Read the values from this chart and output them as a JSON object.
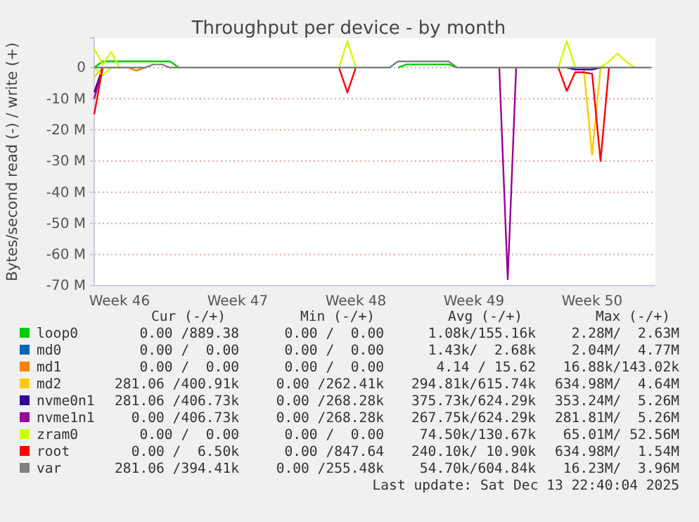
{
  "chart_data": {
    "type": "line",
    "title": "Throughput per device - by month",
    "ylabel": "Bytes/second read (-) / write (+)",
    "categories": [
      null,
      null,
      null,
      "Week 46",
      null,
      null,
      null,
      null,
      null,
      null,
      null,
      null,
      null,
      null,
      null,
      null,
      null,
      "Week 47",
      null,
      null,
      null,
      null,
      null,
      null,
      null,
      null,
      null,
      null,
      null,
      null,
      null,
      "Week 48",
      null,
      null,
      null,
      null,
      null,
      null,
      null,
      null,
      null,
      null,
      null,
      null,
      null,
      "Week 49",
      null,
      null,
      null,
      null,
      null,
      null,
      null,
      null,
      null,
      null,
      null,
      null,
      null,
      "Week 50",
      null,
      null,
      null,
      null,
      null,
      null,
      null
    ],
    "ylim": [
      -70,
      9.5
    ],
    "yticks": [
      {
        "value": -70,
        "label": "-70 M"
      },
      {
        "value": -60,
        "label": "-60 M"
      },
      {
        "value": -50,
        "label": "-50 M"
      },
      {
        "value": -40,
        "label": "-40 M"
      },
      {
        "value": -30,
        "label": "-30 M"
      },
      {
        "value": -20,
        "label": "-20 M"
      },
      {
        "value": -10,
        "label": "-10 M"
      },
      0
    ],
    "grid": "y",
    "legend": "bottom",
    "series": [
      {
        "name": "loop0",
        "color": "#00cc00",
        "values": [
          0,
          2,
          2,
          2,
          2,
          2,
          2,
          2,
          2,
          2,
          0,
          null,
          null,
          null,
          null,
          null,
          null,
          null,
          null,
          null,
          null,
          null,
          null,
          null,
          null,
          null,
          null,
          null,
          null,
          null,
          null,
          null,
          null,
          null,
          null,
          null,
          0,
          1,
          1,
          1,
          1,
          1,
          1,
          0,
          null,
          null,
          null,
          null,
          null,
          null,
          null,
          null,
          null,
          null,
          null,
          null,
          null,
          null,
          null,
          null,
          null,
          null,
          null,
          null,
          null,
          null,
          null
        ]
      },
      {
        "name": "md0",
        "color": "#0066b3",
        "values": [
          null,
          null,
          null,
          null,
          null,
          null,
          null,
          null,
          null,
          null,
          null,
          null,
          null,
          null,
          null,
          null,
          null,
          null,
          null,
          null,
          null,
          null,
          null,
          null,
          null,
          null,
          null,
          null,
          null,
          null,
          null,
          null,
          null,
          null,
          null,
          null,
          null,
          null,
          null,
          null,
          null,
          null,
          null,
          null,
          null,
          null,
          null,
          null,
          null,
          null,
          null,
          null,
          null,
          null,
          null,
          null,
          null,
          null,
          null,
          null,
          null,
          null,
          null,
          null,
          null,
          null,
          null
        ]
      },
      {
        "name": "md1",
        "color": "#ff8000",
        "values": [
          null,
          null,
          null,
          null,
          0,
          -1,
          0,
          null,
          null,
          null,
          null,
          null,
          null,
          null,
          null,
          null,
          null,
          null,
          null,
          null,
          null,
          null,
          null,
          null,
          null,
          null,
          null,
          null,
          null,
          null,
          null,
          null,
          null,
          null,
          null,
          null,
          null,
          null,
          null,
          null,
          null,
          null,
          null,
          null,
          null,
          null,
          null,
          null,
          null,
          null,
          null,
          null,
          null,
          null,
          null,
          null,
          null,
          null,
          null,
          null,
          null,
          null,
          null,
          null,
          null,
          null,
          null
        ]
      },
      {
        "name": "md2",
        "color": "#ffcc00",
        "values": [
          -3,
          0,
          null,
          null,
          null,
          null,
          null,
          null,
          null,
          null,
          null,
          null,
          null,
          null,
          null,
          null,
          null,
          null,
          null,
          null,
          null,
          null,
          null,
          null,
          null,
          null,
          null,
          null,
          null,
          null,
          null,
          null,
          null,
          null,
          null,
          null,
          null,
          null,
          null,
          null,
          null,
          null,
          null,
          null,
          null,
          null,
          null,
          null,
          null,
          null,
          null,
          null,
          null,
          null,
          null,
          null,
          null,
          null,
          0,
          -28,
          0,
          null,
          null,
          null,
          null,
          null,
          null
        ]
      },
      {
        "name": "nvme0n1",
        "color": "#330099",
        "values": [
          -8,
          0,
          null,
          null,
          null,
          null,
          null,
          null,
          null,
          null,
          null,
          null,
          null,
          null,
          null,
          null,
          null,
          null,
          null,
          null,
          null,
          null,
          null,
          null,
          null,
          null,
          null,
          null,
          null,
          null,
          null,
          null,
          null,
          null,
          null,
          null,
          null,
          null,
          null,
          null,
          null,
          null,
          null,
          null,
          null,
          null,
          null,
          null,
          null,
          null,
          null,
          null,
          null,
          null,
          null,
          null,
          0,
          -0.6,
          -0.6,
          -0.6,
          0,
          null,
          null,
          null,
          null,
          null,
          null
        ]
      },
      {
        "name": "nvme1n1",
        "color": "#990099",
        "values": [
          -10,
          0,
          null,
          null,
          null,
          null,
          null,
          null,
          null,
          null,
          null,
          null,
          null,
          null,
          null,
          null,
          null,
          null,
          null,
          null,
          null,
          null,
          null,
          null,
          null,
          null,
          null,
          null,
          null,
          null,
          null,
          null,
          null,
          null,
          null,
          null,
          null,
          null,
          null,
          null,
          null,
          null,
          null,
          null,
          null,
          null,
          null,
          null,
          0,
          -68,
          0,
          null,
          null,
          null,
          null,
          null,
          null,
          null,
          null,
          null,
          null,
          null,
          null,
          null,
          null,
          null,
          null
        ]
      },
      {
        "name": "zram0",
        "color": "#ccff00",
        "values": [
          6,
          1,
          5,
          0,
          null,
          null,
          null,
          null,
          null,
          null,
          null,
          null,
          null,
          null,
          null,
          null,
          null,
          null,
          null,
          null,
          null,
          null,
          null,
          null,
          null,
          null,
          null,
          null,
          null,
          0,
          8.5,
          0,
          null,
          null,
          null,
          null,
          null,
          null,
          null,
          null,
          null,
          null,
          null,
          null,
          null,
          null,
          null,
          null,
          null,
          null,
          null,
          null,
          null,
          null,
          null,
          0,
          8.5,
          0,
          null,
          null,
          0,
          2,
          4.5,
          2,
          0,
          null,
          null
        ]
      },
      {
        "color": "#ccff00",
        "values": [
          0,
          -2.5,
          0,
          null,
          null,
          null,
          null,
          null,
          null,
          null,
          null,
          null,
          null,
          null,
          null,
          null,
          null,
          null,
          null,
          null,
          null,
          null,
          null,
          null,
          null,
          null,
          null,
          null,
          null,
          null,
          null,
          null,
          null,
          null,
          null,
          null,
          null,
          null,
          null,
          null,
          null,
          null,
          null,
          null,
          null,
          null,
          null,
          null,
          null,
          null,
          null,
          null,
          null,
          null,
          null,
          null,
          null,
          null,
          null,
          null,
          null,
          null,
          null,
          null,
          null,
          null,
          null
        ]
      },
      {
        "name": "root",
        "color": "#ff0000",
        "values": [
          -15,
          0,
          null,
          null,
          null,
          null,
          null,
          null,
          null,
          null,
          null,
          null,
          null,
          null,
          null,
          null,
          null,
          null,
          null,
          null,
          null,
          null,
          null,
          null,
          null,
          null,
          null,
          null,
          null,
          0,
          -8,
          0,
          null,
          null,
          null,
          null,
          null,
          null,
          null,
          null,
          null,
          null,
          null,
          null,
          null,
          null,
          null,
          null,
          null,
          null,
          null,
          null,
          null,
          null,
          null,
          0,
          -7.5,
          -1.5,
          -1.5,
          -2,
          -30,
          0,
          null,
          null,
          null,
          null,
          null
        ]
      },
      {
        "name": "var",
        "color": "#808080",
        "values": [
          0,
          0,
          0,
          0,
          0,
          0,
          0,
          1,
          1,
          0,
          0,
          0,
          0,
          0,
          0,
          0,
          0,
          0,
          0,
          0,
          0,
          0,
          0,
          0,
          0,
          0,
          0,
          0,
          0,
          0,
          0,
          0,
          0,
          0,
          0,
          0,
          2,
          2,
          2,
          2,
          2,
          2,
          2,
          0,
          0,
          0,
          0,
          0,
          0,
          0,
          0,
          0,
          0,
          0,
          0,
          0,
          0,
          0,
          0,
          0,
          0,
          0,
          0,
          0,
          0,
          0,
          0
        ]
      }
    ],
    "annotations": [
      "Cur (-/+)",
      "Min (-/+)",
      "Avg (-/+)",
      "Max (-/+)",
      "0.00 /889.38",
      "0.00 /  0.00",
      "1.08k/155.16k",
      "2.28M/  2.63M",
      "0.00 /  0.00",
      "0.00 /  0.00",
      "1.43k/  2.68k",
      "2.04M/  4.77M",
      "0.00 /  0.00",
      "0.00 /  0.00",
      "4.14 / 15.62",
      "16.88k/143.02k",
      "281.06 /400.91k",
      "0.00 /262.41k",
      "294.81k/615.74k",
      "634.98M/  4.64M",
      "281.06 /406.73k",
      "0.00 /268.28k",
      "375.73k/624.29k",
      "353.24M/  5.26M",
      "0.00 /406.73k",
      "0.00 /268.28k",
      "267.75k/624.29k",
      "281.81M/  5.26M",
      "0.00 /  0.00",
      "0.00 /  0.00",
      "74.50k/130.67k",
      "65.01M/ 52.56M",
      "0.00 /  6.50k",
      "0.00 /847.64",
      "240.10k/ 10.90k",
      "634.98M/  1.54M",
      "281.06 /394.41k",
      "0.00 /255.48k",
      "54.70k/604.84k",
      "16.23M/  3.96M",
      "Last update: Sat Dec 13 22:40:04 2025"
    ]
  }
}
